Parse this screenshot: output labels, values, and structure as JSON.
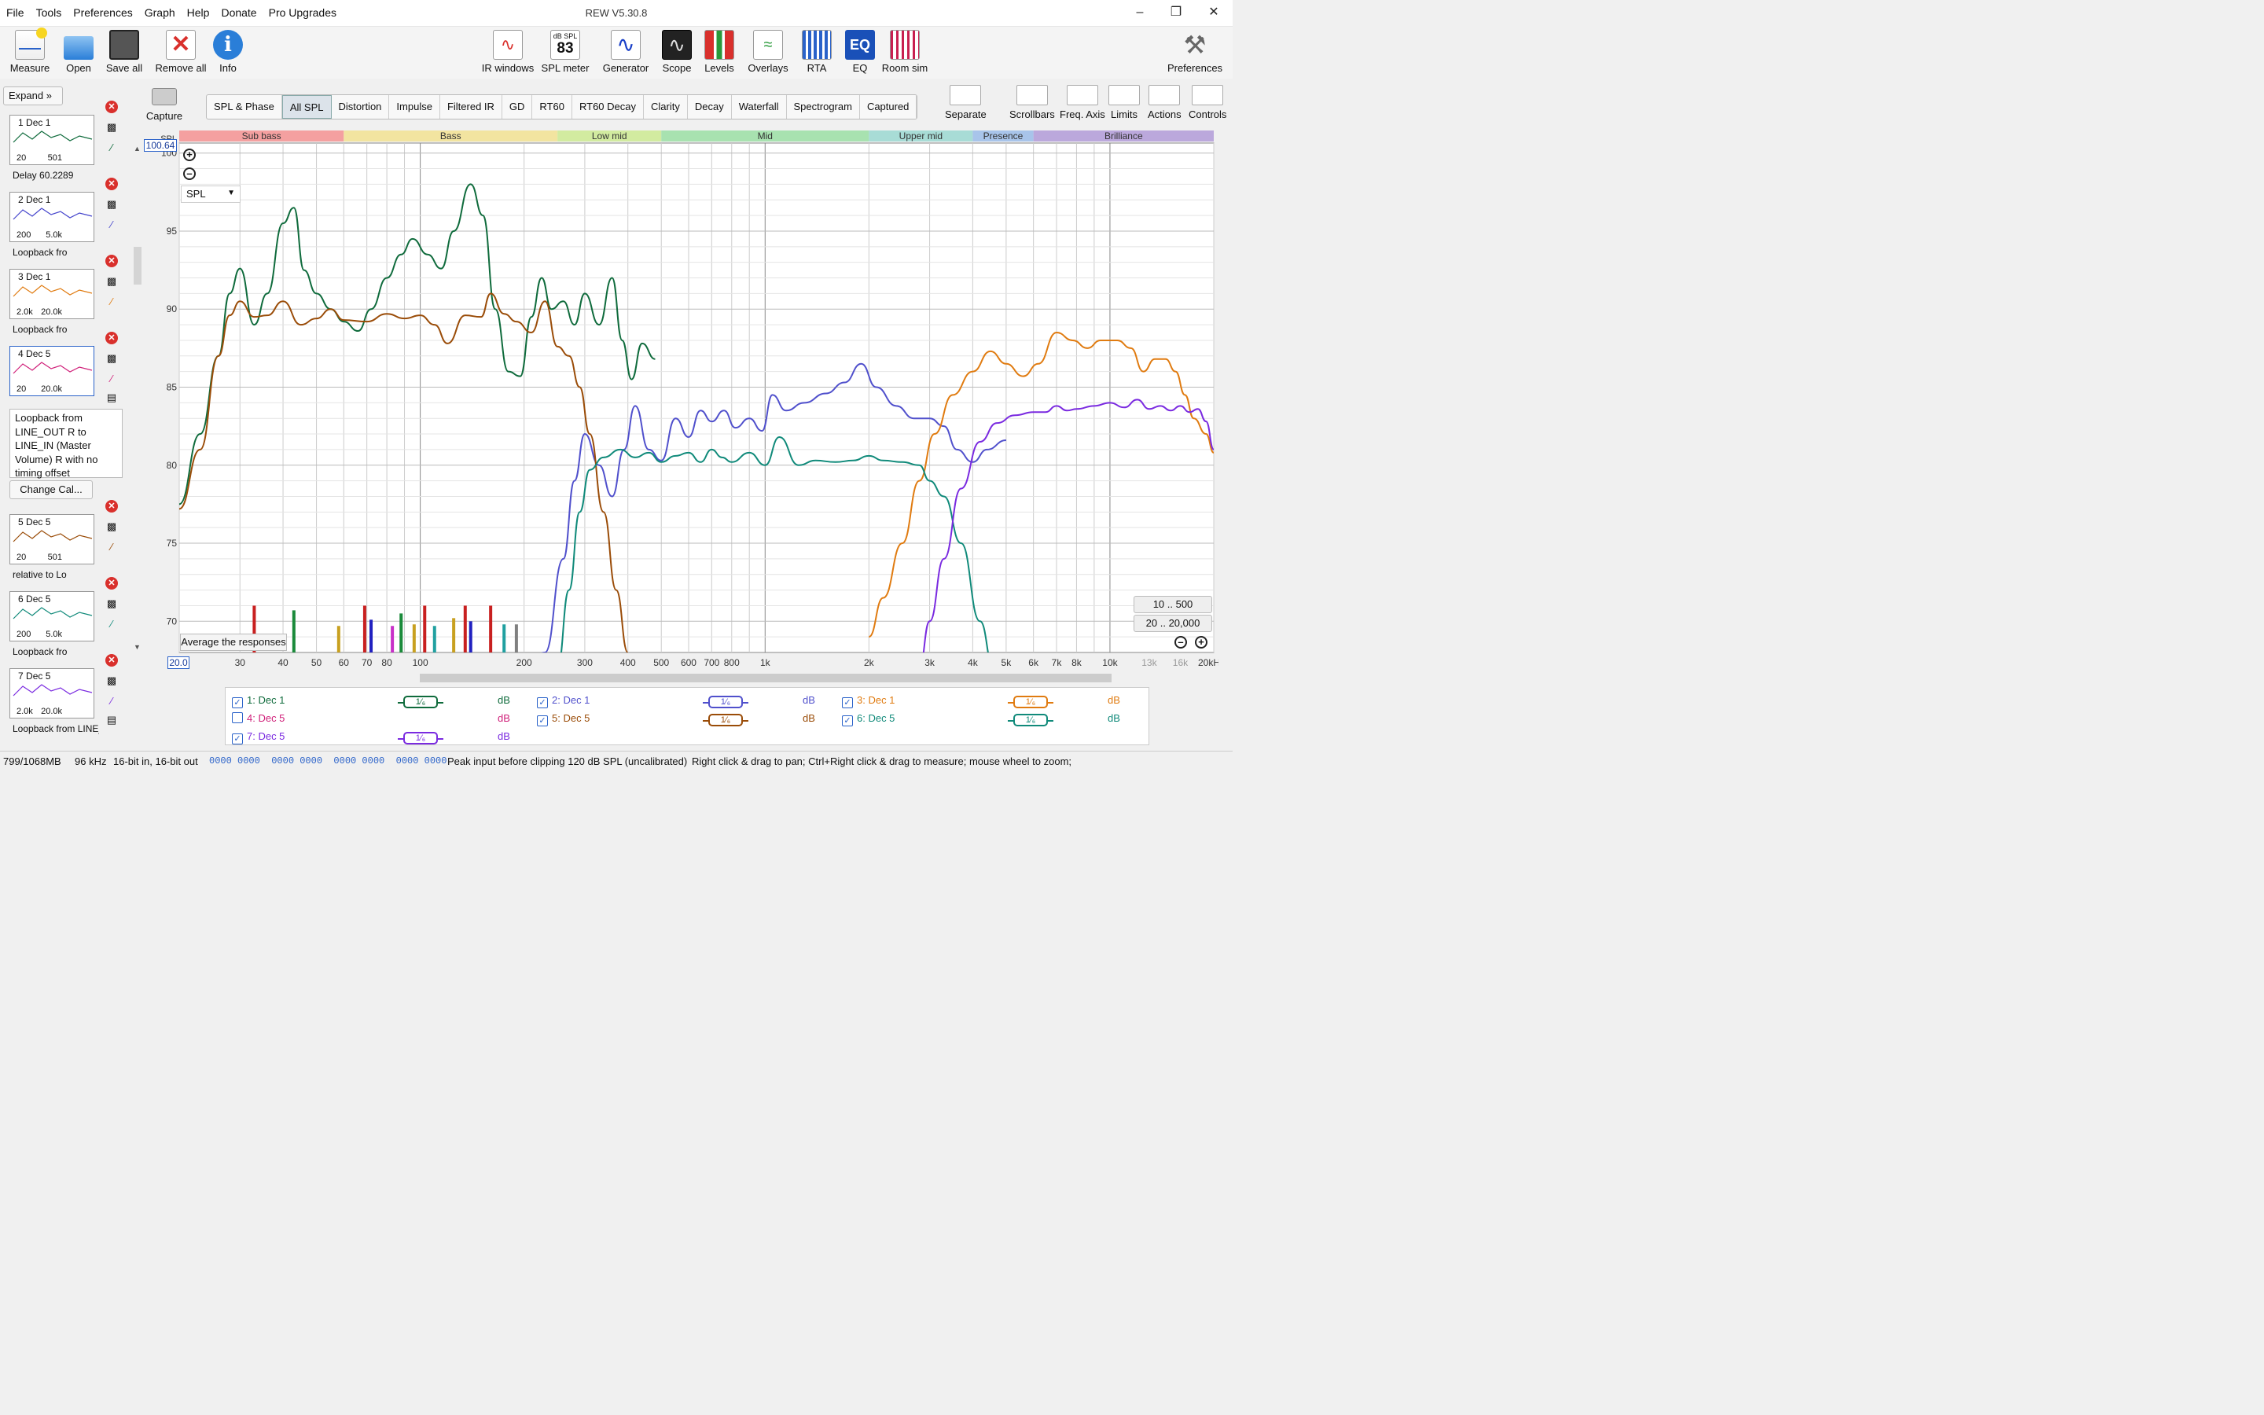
{
  "app": {
    "title": "REW V5.30.8",
    "menu": [
      "File",
      "Tools",
      "Preferences",
      "Graph",
      "Help",
      "Donate",
      "Pro Upgrades"
    ]
  },
  "toolbar": {
    "left": [
      {
        "label": "Measure",
        "icon": "measure-icon"
      },
      {
        "label": "Open",
        "icon": "folder-icon"
      },
      {
        "label": "Save all",
        "icon": "save-icon"
      },
      {
        "label": "Remove all",
        "icon": "remove-all-icon"
      },
      {
        "label": "Info",
        "icon": "info-icon"
      }
    ],
    "center": [
      {
        "label": "IR windows",
        "icon": "ir-windows-icon"
      },
      {
        "label": "SPL meter",
        "icon": "spl-meter-icon",
        "badge_top": "dB SPL",
        "badge_value": "83"
      },
      {
        "label": "Generator",
        "icon": "generator-icon"
      },
      {
        "label": "Scope",
        "icon": "scope-icon"
      },
      {
        "label": "Levels",
        "icon": "levels-icon"
      },
      {
        "label": "Overlays",
        "icon": "overlays-icon"
      },
      {
        "label": "RTA",
        "icon": "rta-icon"
      },
      {
        "label": "EQ",
        "icon": "eq-icon",
        "badge_value": "EQ"
      },
      {
        "label": "Room sim",
        "icon": "room-sim-icon"
      }
    ],
    "right": {
      "label": "Preferences",
      "icon": "wrench-icon"
    }
  },
  "panel": {
    "expand_label": "Expand",
    "measurements": [
      {
        "num": "1",
        "name": "Dec 1",
        "l1": "20",
        "l2": "501",
        "desc": "Delay 60.2289",
        "color": "#0f6b3c"
      },
      {
        "num": "2",
        "name": "Dec 1",
        "l1": "200",
        "l2": "5.0k",
        "desc": "Loopback fro",
        "color": "#4444cc"
      },
      {
        "num": "3",
        "name": "Dec 1",
        "l1": "2.0k",
        "l2": "20.0k",
        "desc": "Loopback fro",
        "color": "#e07b10"
      },
      {
        "num": "4",
        "name": "Dec 5",
        "l1": "20",
        "l2": "20.0k",
        "desc": "",
        "color": "#d0207a"
      },
      {
        "num": "5",
        "name": "Dec 5",
        "l1": "20",
        "l2": "501",
        "desc": "relative to Lo",
        "color": "#9a4c08"
      },
      {
        "num": "6",
        "name": "Dec 5",
        "l1": "200",
        "l2": "5.0k",
        "desc": "Loopback fro",
        "color": "#108a7a"
      },
      {
        "num": "7",
        "name": "Dec 5",
        "l1": "2.0k",
        "l2": "20.0k",
        "desc": "Loopback from LINE_OUT R t",
        "color": "#7a2ae0"
      }
    ],
    "note4": "Loopback from LINE_OUT R to LINE_IN (Master Volume) R with no timing offset",
    "change_cal": "Change Cal..."
  },
  "capture_label": "Capture",
  "tabs": [
    "SPL & Phase",
    "All SPL",
    "Distortion",
    "Impulse",
    "Filtered IR",
    "GD",
    "RT60",
    "RT60 Decay",
    "Clarity",
    "Decay",
    "Waterfall",
    "Spectrogram",
    "Captured"
  ],
  "selected_tab": "All SPL",
  "graph_tools": [
    "Separate",
    "Scrollbars",
    "Freq. Axis",
    "Limits",
    "Actions",
    "Controls"
  ],
  "graph": {
    "cursor_value": "100.64",
    "start_value": "20.0",
    "y_select": "SPL",
    "avg_button": "Average the responses",
    "range_buttons": [
      "10 .. 500",
      "20 .. 20,000"
    ],
    "bands": [
      {
        "name": "Sub bass",
        "color": "#f4a0a0"
      },
      {
        "name": "Bass",
        "color": "#f2e4a0"
      },
      {
        "name": "Low mid",
        "color": "#d2eba0"
      },
      {
        "name": "Mid",
        "color": "#a8e2b0"
      },
      {
        "name": "Upper mid",
        "color": "#a8dcd6"
      },
      {
        "name": "Presence",
        "color": "#a8c4ea"
      },
      {
        "name": "Brilliance",
        "color": "#bba8dc"
      }
    ]
  },
  "chart_data": {
    "type": "line",
    "xscale": "log",
    "xlim": [
      20,
      20000
    ],
    "ylim": [
      68,
      100.64
    ],
    "ylabel": "SPL",
    "xticks": [
      {
        "v": 20,
        "label": ""
      },
      {
        "v": 30,
        "label": "30"
      },
      {
        "v": 40,
        "label": "40"
      },
      {
        "v": 50,
        "label": "50"
      },
      {
        "v": 60,
        "label": "60"
      },
      {
        "v": 70,
        "label": "70"
      },
      {
        "v": 80,
        "label": "80"
      },
      {
        "v": 100,
        "label": "100"
      },
      {
        "v": 200,
        "label": "200"
      },
      {
        "v": 300,
        "label": "300"
      },
      {
        "v": 400,
        "label": "400"
      },
      {
        "v": 500,
        "label": "500"
      },
      {
        "v": 600,
        "label": "600"
      },
      {
        "v": 700,
        "label": "700"
      },
      {
        "v": 800,
        "label": "800"
      },
      {
        "v": 1000,
        "label": "1k"
      },
      {
        "v": 2000,
        "label": "2k"
      },
      {
        "v": 3000,
        "label": "3k"
      },
      {
        "v": 4000,
        "label": "4k"
      },
      {
        "v": 5000,
        "label": "5k"
      },
      {
        "v": 6000,
        "label": "6k"
      },
      {
        "v": 7000,
        "label": "7k"
      },
      {
        "v": 8000,
        "label": "8k"
      },
      {
        "v": 10000,
        "label": "10k"
      },
      {
        "v": 13000,
        "label": "13k"
      },
      {
        "v": 16000,
        "label": "16k"
      },
      {
        "v": 20000,
        "label": "20kHz"
      }
    ],
    "yticks": [
      70,
      75,
      80,
      85,
      90,
      95,
      100
    ],
    "series": [
      {
        "name": "1: Dec 1",
        "color": "#0f6b3c",
        "points": [
          [
            20,
            77.5
          ],
          [
            23,
            82
          ],
          [
            26,
            87
          ],
          [
            28,
            91
          ],
          [
            30,
            92.6
          ],
          [
            33,
            89
          ],
          [
            36,
            91
          ],
          [
            40,
            95.5
          ],
          [
            43,
            96.5
          ],
          [
            46,
            92.5
          ],
          [
            50,
            91
          ],
          [
            55,
            90
          ],
          [
            60,
            89.2
          ],
          [
            66,
            88.6
          ],
          [
            72,
            90
          ],
          [
            80,
            92
          ],
          [
            88,
            93.5
          ],
          [
            95,
            94.5
          ],
          [
            105,
            93.5
          ],
          [
            115,
            92.6
          ],
          [
            125,
            95
          ],
          [
            140,
            98
          ],
          [
            152,
            96
          ],
          [
            165,
            90
          ],
          [
            180,
            86
          ],
          [
            195,
            85.7
          ],
          [
            210,
            89.5
          ],
          [
            225,
            92
          ],
          [
            240,
            90
          ],
          [
            260,
            90.5
          ],
          [
            280,
            89
          ],
          [
            300,
            91
          ],
          [
            330,
            89
          ],
          [
            360,
            92
          ],
          [
            385,
            88
          ],
          [
            410,
            85.5
          ],
          [
            440,
            87.8
          ],
          [
            480,
            86.8
          ]
        ]
      },
      {
        "name": "2: Dec 1",
        "color": "#5050cc",
        "points": [
          [
            200,
            67
          ],
          [
            230,
            68
          ],
          [
            260,
            74
          ],
          [
            280,
            79
          ],
          [
            300,
            82
          ],
          [
            330,
            80
          ],
          [
            360,
            78
          ],
          [
            390,
            81
          ],
          [
            420,
            83.8
          ],
          [
            460,
            81
          ],
          [
            500,
            80.3
          ],
          [
            550,
            83
          ],
          [
            600,
            81.8
          ],
          [
            650,
            83.5
          ],
          [
            700,
            82.8
          ],
          [
            760,
            83.5
          ],
          [
            820,
            82.4
          ],
          [
            900,
            83
          ],
          [
            980,
            82.2
          ],
          [
            1050,
            84.5
          ],
          [
            1150,
            83.5
          ],
          [
            1300,
            84
          ],
          [
            1500,
            84.6
          ],
          [
            1700,
            85.3
          ],
          [
            1900,
            86.5
          ],
          [
            2100,
            85
          ],
          [
            2400,
            83.8
          ],
          [
            2700,
            83
          ],
          [
            3000,
            83
          ],
          [
            3300,
            82.5
          ],
          [
            3600,
            81
          ],
          [
            4000,
            80.2
          ],
          [
            4400,
            81
          ],
          [
            5000,
            81.6
          ]
        ]
      },
      {
        "name": "3: Dec 1",
        "color": "#e07b10",
        "points": [
          [
            2000,
            69
          ],
          [
            2200,
            71.5
          ],
          [
            2500,
            75
          ],
          [
            2800,
            79
          ],
          [
            3100,
            82
          ],
          [
            3500,
            84.5
          ],
          [
            4000,
            86
          ],
          [
            4500,
            87.3
          ],
          [
            5000,
            86.5
          ],
          [
            5600,
            85.7
          ],
          [
            6200,
            86.5
          ],
          [
            7000,
            88.5
          ],
          [
            7800,
            88
          ],
          [
            8600,
            87.5
          ],
          [
            9400,
            88
          ],
          [
            10500,
            88
          ],
          [
            11500,
            87.5
          ],
          [
            12500,
            86
          ],
          [
            13500,
            86.8
          ],
          [
            14500,
            86.8
          ],
          [
            15500,
            86
          ],
          [
            16500,
            84.5
          ],
          [
            17500,
            83
          ],
          [
            19000,
            82
          ],
          [
            20000,
            80.8
          ]
        ]
      },
      {
        "name": "5: Dec 5",
        "color": "#9a4c08",
        "points": [
          [
            20,
            77.2
          ],
          [
            23,
            81
          ],
          [
            26,
            87
          ],
          [
            28,
            89.6
          ],
          [
            30,
            90.5
          ],
          [
            33,
            89.5
          ],
          [
            36,
            89.6
          ],
          [
            40,
            90.5
          ],
          [
            45,
            89
          ],
          [
            50,
            89.4
          ],
          [
            55,
            90
          ],
          [
            60,
            89.3
          ],
          [
            70,
            89.2
          ],
          [
            80,
            89.7
          ],
          [
            90,
            89.4
          ],
          [
            100,
            89.6
          ],
          [
            110,
            89
          ],
          [
            120,
            87.8
          ],
          [
            135,
            89.6
          ],
          [
            150,
            89.5
          ],
          [
            160,
            91
          ],
          [
            175,
            89.7
          ],
          [
            190,
            89.2
          ],
          [
            210,
            88.5
          ],
          [
            230,
            90.5
          ],
          [
            250,
            87.6
          ],
          [
            270,
            87
          ],
          [
            290,
            85
          ],
          [
            310,
            82
          ],
          [
            340,
            77
          ],
          [
            370,
            72
          ],
          [
            400,
            68
          ]
        ]
      },
      {
        "name": "6: Dec 5",
        "color": "#108a7a",
        "points": [
          [
            250,
            67
          ],
          [
            270,
            72
          ],
          [
            290,
            77
          ],
          [
            310,
            79.7
          ],
          [
            340,
            80.5
          ],
          [
            380,
            81
          ],
          [
            420,
            80.5
          ],
          [
            460,
            80.8
          ],
          [
            500,
            80.2
          ],
          [
            550,
            80.6
          ],
          [
            600,
            80.8
          ],
          [
            650,
            80.2
          ],
          [
            700,
            81
          ],
          [
            750,
            80.5
          ],
          [
            800,
            80.2
          ],
          [
            900,
            80.8
          ],
          [
            1000,
            80
          ],
          [
            1100,
            81.8
          ],
          [
            1250,
            80
          ],
          [
            1400,
            80.3
          ],
          [
            1600,
            80.2
          ],
          [
            1800,
            80.3
          ],
          [
            2000,
            80.6
          ],
          [
            2200,
            80.3
          ],
          [
            2500,
            80.2
          ],
          [
            2800,
            80
          ],
          [
            3000,
            79
          ],
          [
            3300,
            78
          ],
          [
            3700,
            75
          ],
          [
            4200,
            70
          ],
          [
            4600,
            67
          ]
        ]
      },
      {
        "name": "7: Dec 5",
        "color": "#7a2ae0",
        "points": [
          [
            2800,
            67
          ],
          [
            3000,
            70
          ],
          [
            3300,
            74
          ],
          [
            3700,
            78.5
          ],
          [
            4200,
            81.5
          ],
          [
            4700,
            82.7
          ],
          [
            5300,
            83.2
          ],
          [
            6000,
            83.4
          ],
          [
            6500,
            83.4
          ],
          [
            7000,
            83.8
          ],
          [
            7500,
            83.5
          ],
          [
            8000,
            83.6
          ],
          [
            9000,
            83.8
          ],
          [
            10000,
            84
          ],
          [
            11000,
            83.7
          ],
          [
            12000,
            84.2
          ],
          [
            13000,
            83.6
          ],
          [
            14000,
            83.8
          ],
          [
            15000,
            83.5
          ],
          [
            16000,
            83.8
          ],
          [
            17000,
            83.4
          ],
          [
            18000,
            83.6
          ],
          [
            19000,
            82.8
          ],
          [
            20000,
            81
          ]
        ]
      }
    ],
    "bars": [
      {
        "x": 33,
        "h": 71,
        "c": "#c82020"
      },
      {
        "x": 43,
        "h": 70.7,
        "c": "#1a8a3a"
      },
      {
        "x": 58,
        "h": 69.7,
        "c": "#c8a020"
      },
      {
        "x": 69,
        "h": 71,
        "c": "#c82020"
      },
      {
        "x": 72,
        "h": 70.1,
        "c": "#2020c0"
      },
      {
        "x": 83,
        "h": 69.7,
        "c": "#c830c8"
      },
      {
        "x": 88,
        "h": 70.5,
        "c": "#1a8a3a"
      },
      {
        "x": 96,
        "h": 69.8,
        "c": "#c8a020"
      },
      {
        "x": 103,
        "h": 71,
        "c": "#c82020"
      },
      {
        "x": 110,
        "h": 69.7,
        "c": "#20a0a0"
      },
      {
        "x": 125,
        "h": 70.2,
        "c": "#c8a020"
      },
      {
        "x": 135,
        "h": 71,
        "c": "#c82020"
      },
      {
        "x": 140,
        "h": 70,
        "c": "#2020c0"
      },
      {
        "x": 160,
        "h": 71,
        "c": "#c82020"
      },
      {
        "x": 175,
        "h": 69.8,
        "c": "#20a0a0"
      },
      {
        "x": 190,
        "h": 69.8,
        "c": "#808080"
      }
    ]
  },
  "legend": [
    {
      "label": "1: Dec 1",
      "checked": true,
      "color": "#0f6b3c",
      "unit": "dB",
      "smooth": "1/6"
    },
    {
      "label": "2: Dec 1",
      "checked": true,
      "color": "#5050cc",
      "unit": "dB",
      "smooth": "1/6"
    },
    {
      "label": "3: Dec 1",
      "checked": true,
      "color": "#e07b10",
      "unit": "dB",
      "smooth": "1/6"
    },
    {
      "label": "4: Dec 5",
      "checked": false,
      "color": "#d0207a",
      "unit": "dB",
      "smooth": ""
    },
    {
      "label": "5: Dec 5",
      "checked": true,
      "color": "#9a4c08",
      "unit": "dB",
      "smooth": "1/6"
    },
    {
      "label": "6: Dec 5",
      "checked": true,
      "color": "#108a7a",
      "unit": "dB",
      "smooth": "1/6"
    },
    {
      "label": "7: Dec 5",
      "checked": true,
      "color": "#7a2ae0",
      "unit": "dB",
      "smooth": "1/6"
    }
  ],
  "status": {
    "memory": "799/1068MB",
    "rate": "96 kHz",
    "bits": "16-bit in, 16-bit out",
    "levels": "0000 0000  0000 0000  0000 0000  0000 0000",
    "peak": "Peak input before clipping 120 dB SPL (uncalibrated)",
    "hint": "Right click & drag to pan; Ctrl+Right click & drag to measure; mouse wheel to zoom;"
  }
}
